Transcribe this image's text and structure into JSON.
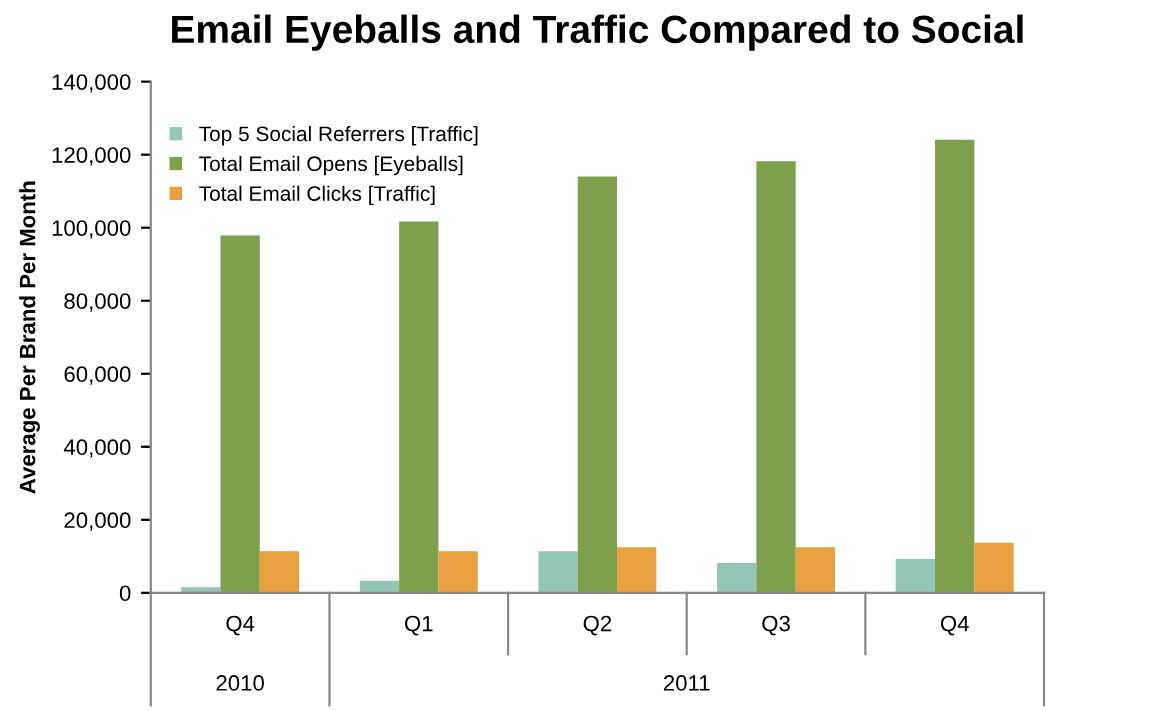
{
  "chart_data": {
    "type": "bar",
    "title": "Email Eyeballs and Traffic Compared to Social",
    "ylabel": "Average Per Brand Per Month",
    "categories": [
      "Q4",
      "Q1",
      "Q2",
      "Q3",
      "Q4"
    ],
    "series": [
      {
        "name": "Top 5 Social Referrers [Traffic]",
        "color": "#93c6b6",
        "values": [
          1500,
          3300,
          11400,
          8200,
          9300
        ]
      },
      {
        "name": "Total Email Opens [Eyeballs]",
        "color": "#7ea04d",
        "values": [
          97900,
          101700,
          114000,
          118200,
          124100
        ]
      },
      {
        "name": "Total Email Clicks [Traffic]",
        "color": "#e9a040",
        "values": [
          11400,
          11400,
          12500,
          12500,
          13700
        ]
      }
    ],
    "ylim": [
      0,
      140000
    ],
    "yticks": [
      {
        "value": 0,
        "label": "0"
      },
      {
        "value": 20000,
        "label": "20,000"
      },
      {
        "value": 40000,
        "label": "40,000"
      },
      {
        "value": 60000,
        "label": "60,000"
      },
      {
        "value": 80000,
        "label": "80,000"
      },
      {
        "value": 100000,
        "label": "100,000"
      },
      {
        "value": 120000,
        "label": "120,000"
      },
      {
        "value": 140000,
        "label": "140,000"
      }
    ],
    "annotations": [
      "2010",
      "2011"
    ],
    "grid": false,
    "legend": "top left"
  }
}
